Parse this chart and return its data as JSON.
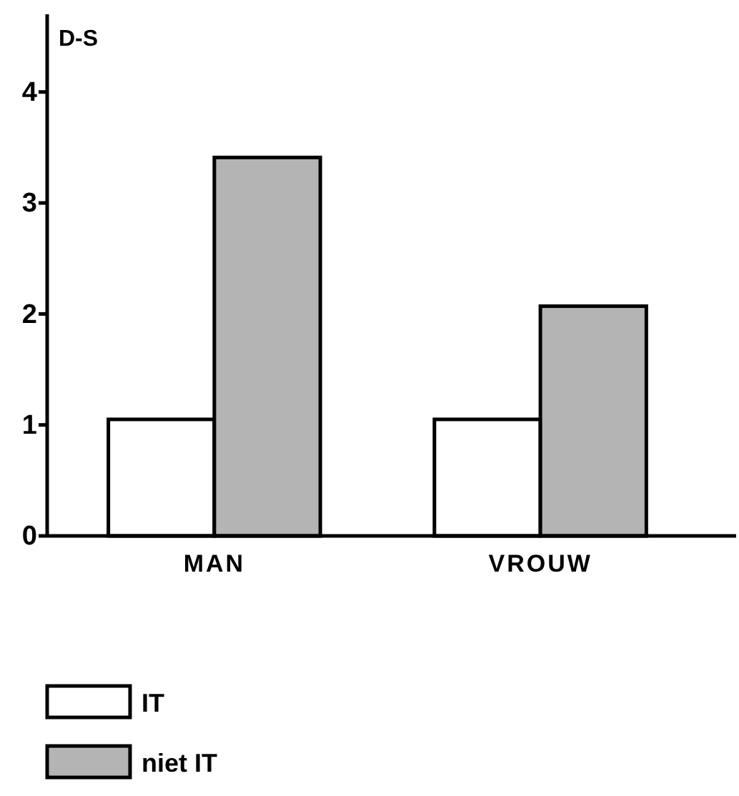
{
  "chart_data": {
    "type": "bar",
    "ylabel": "D-S",
    "categories": [
      "MAN",
      "VROUW"
    ],
    "series": [
      {
        "name": "IT",
        "color": "#ffffff",
        "values": [
          1.05,
          1.05
        ]
      },
      {
        "name": "niet IT",
        "color": "#b4b4b4",
        "values": [
          3.41,
          2.07
        ]
      }
    ],
    "ylim": [
      0,
      4.7
    ],
    "yticks": [
      0,
      1,
      2,
      3,
      4
    ],
    "grid": false,
    "legend": "bottom left"
  }
}
